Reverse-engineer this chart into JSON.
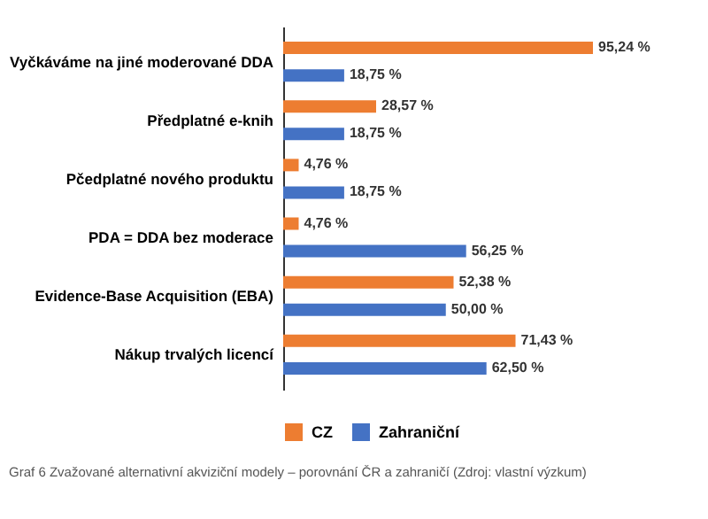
{
  "chart_data": {
    "type": "bar",
    "orientation": "horizontal",
    "categories": [
      "Vyčkáváme na jiné moderované DDA",
      "Předplatné e-knih",
      "Pčedplatné nového produktu",
      "PDA = DDA bez moderace",
      "Evidence-Base Acquisition (EBA)",
      "Nákup trvalých licencí"
    ],
    "series": [
      {
        "name": "CZ",
        "color": "#ed7d31",
        "values": [
          95.24,
          28.57,
          4.76,
          4.76,
          52.38,
          71.43
        ],
        "value_labels": [
          "95,24 %",
          "28,57 %",
          "4,76 %",
          "4,76 %",
          "52,38 %",
          "71,43 %"
        ]
      },
      {
        "name": "Zahraniční",
        "color": "#4472c4",
        "values": [
          18.75,
          18.75,
          18.75,
          56.25,
          50.0,
          62.5
        ],
        "value_labels": [
          "18,75 %",
          "18,75 %",
          "18,75 %",
          "56,25 %",
          "50,00 %",
          "62,50 %"
        ]
      }
    ],
    "legend": "bottom",
    "annotations": [
      "Graf 6 Zvažované alternativní akviziční modely – porovnání ČR a zahraničí (Zdroj: vlastní výzkum)"
    ]
  }
}
